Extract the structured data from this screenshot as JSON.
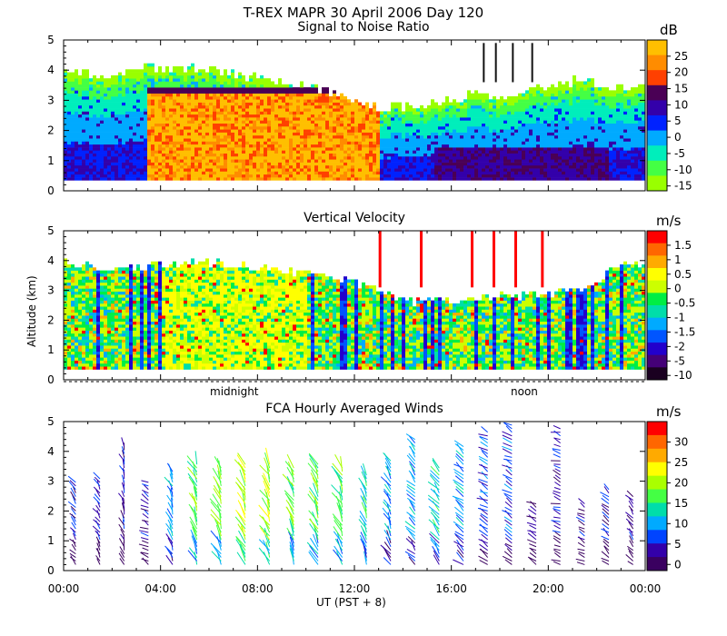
{
  "header": {
    "title": "T-REX  MAPR 30 April 2006 Day 120",
    "subtitle": "Signal to Noise Ratio"
  },
  "panels": {
    "velocity_title": "Vertical Velocity",
    "winds_title": "FCA Hourly Averaged Winds",
    "ylabel": "Altitude (km)",
    "xlabel": "UT  (PST + 8)",
    "midnight_label": "midnight",
    "noon_label": "noon"
  },
  "colorbars": {
    "snr_unit": "dB",
    "vel_unit": "m/s",
    "wind_unit": "m/s",
    "snr_ticks": [
      "25",
      "20",
      "15",
      "10",
      "5",
      "0",
      "-5",
      "-10",
      "-15"
    ],
    "vel_ticks": [
      "1.5",
      "1",
      "0.5",
      "0",
      "-0.5",
      "-1",
      "-1.5",
      "-2",
      "-5",
      "-10"
    ],
    "wind_ticks": [
      "30",
      "25",
      "20",
      "15",
      "10",
      "5",
      "0"
    ],
    "snr_colors": [
      "#ffbf00",
      "#ff8c00",
      "#ff4000",
      "#4a0055",
      "#3300aa",
      "#0022ff",
      "#00aaff",
      "#00eebb",
      "#44ff44",
      "#99ff00"
    ],
    "vel_colors": [
      "#ff0000",
      "#ff6600",
      "#ffaa00",
      "#ffff00",
      "#ccff00",
      "#00ee44",
      "#00ddaa",
      "#00aaff",
      "#0055ff",
      "#2200cc",
      "#440077",
      "#1a0020"
    ],
    "wind_colors": [
      "#ff0000",
      "#ff6600",
      "#ffaa00",
      "#ffff00",
      "#aaff00",
      "#44ff44",
      "#00ddaa",
      "#00aaff",
      "#0044ff",
      "#3300aa",
      "#3a0060"
    ]
  },
  "chart_data": [
    {
      "type": "heatmap",
      "name": "snr",
      "title": "Signal to Noise Ratio",
      "xlabel": "UT  (PST + 8)",
      "ylabel": "Altitude (km)",
      "xlim": [
        0,
        24
      ],
      "ylim": [
        0,
        5
      ],
      "x_ticks": [
        "00:00",
        "04:00",
        "08:00",
        "12:00",
        "16:00",
        "20:00",
        "00:00"
      ],
      "y_ticks": [
        "0",
        "1",
        "2",
        "3",
        "4",
        "5"
      ],
      "colorbar": {
        "label": "dB",
        "range": [
          -15,
          25
        ]
      },
      "echo_top_km": [
        3.9,
        3.8,
        3.8,
        4.0,
        4.0,
        4.0,
        4.0,
        3.8,
        3.7,
        3.6,
        3.4,
        3.2,
        2.9,
        2.7,
        2.8,
        2.8,
        3.0,
        3.1,
        3.1,
        3.2,
        3.5,
        3.6,
        3.5,
        3.4,
        3.5
      ],
      "strong_layer": {
        "start_ut": 3.4,
        "end_ut": 13.0,
        "top_km": 3.4,
        "peak_db": 22
      }
    },
    {
      "type": "heatmap",
      "name": "vertical_velocity",
      "title": "Vertical Velocity",
      "xlabel": "UT  (PST + 8)",
      "ylabel": "Altitude (km)",
      "xlim": [
        0,
        24
      ],
      "ylim": [
        0,
        5
      ],
      "y_ticks": [
        "0",
        "1",
        "2",
        "3",
        "4",
        "5"
      ],
      "colorbar": {
        "label": "m/s",
        "range": [
          -10,
          1.5
        ]
      },
      "echo_top_km": [
        3.9,
        3.8,
        3.7,
        3.7,
        3.8,
        3.9,
        3.9,
        3.8,
        3.7,
        3.6,
        3.5,
        3.4,
        3.2,
        3.0,
        2.6,
        2.6,
        2.6,
        2.7,
        2.8,
        2.8,
        2.8,
        3.0,
        3.3,
        3.8,
        3.9
      ],
      "markers": {
        "midnight_ut": 8,
        "noon_ut": 20
      }
    },
    {
      "type": "scatter",
      "name": "hourly_winds",
      "title": "FCA Hourly Averaged Winds",
      "xlabel": "UT  (PST + 8)",
      "ylabel": "Altitude (km)",
      "xlim": [
        0,
        24
      ],
      "ylim": [
        0,
        5
      ],
      "x_ticks": [
        "00:00",
        "04:00",
        "08:00",
        "12:00",
        "16:00",
        "20:00",
        "00:00"
      ],
      "y_ticks": [
        "0",
        "1",
        "2",
        "3",
        "4",
        "5"
      ],
      "colorbar": {
        "label": "m/s",
        "range": [
          0,
          30
        ]
      },
      "profiles": [
        {
          "hour": 0.5,
          "top": 3.0,
          "dir": 320,
          "speed": 4
        },
        {
          "hour": 1.5,
          "top": 3.1,
          "dir": 330,
          "speed": 3
        },
        {
          "hour": 2.5,
          "top": 4.2,
          "dir": 340,
          "speed": 3
        },
        {
          "hour": 3.5,
          "top": 3.0,
          "dir": 300,
          "speed": 3
        },
        {
          "hour": 4.5,
          "top": 3.4,
          "dir": 335,
          "speed": 8
        },
        {
          "hour": 5.5,
          "top": 3.6,
          "dir": 335,
          "speed": 14
        },
        {
          "hour": 6.5,
          "top": 3.5,
          "dir": 335,
          "speed": 16
        },
        {
          "hour": 7.5,
          "top": 3.6,
          "dir": 335,
          "speed": 17
        },
        {
          "hour": 8.5,
          "top": 3.6,
          "dir": 335,
          "speed": 17
        },
        {
          "hour": 9.5,
          "top": 3.5,
          "dir": 335,
          "speed": 15
        },
        {
          "hour": 10.5,
          "top": 3.6,
          "dir": 335,
          "speed": 16
        },
        {
          "hour": 11.5,
          "top": 3.5,
          "dir": 335,
          "speed": 16
        },
        {
          "hour": 12.5,
          "top": 3.3,
          "dir": 335,
          "speed": 13
        },
        {
          "hour": 13.5,
          "top": 3.7,
          "dir": 330,
          "speed": 10
        },
        {
          "hour": 14.5,
          "top": 4.5,
          "dir": 320,
          "speed": 8
        },
        {
          "hour": 15.5,
          "top": 3.5,
          "dir": 320,
          "speed": 12
        },
        {
          "hour": 16.5,
          "top": 4.2,
          "dir": 310,
          "speed": 9
        },
        {
          "hour": 17.5,
          "top": 4.7,
          "dir": 300,
          "speed": 6
        },
        {
          "hour": 18.5,
          "top": 4.9,
          "dir": 300,
          "speed": 5
        },
        {
          "hour": 19.5,
          "top": 2.3,
          "dir": 300,
          "speed": 4
        },
        {
          "hour": 20.5,
          "top": 4.8,
          "dir": 290,
          "speed": 3
        },
        {
          "hour": 21.5,
          "top": 2.3,
          "dir": 300,
          "speed": 3
        },
        {
          "hour": 22.5,
          "top": 2.8,
          "dir": 310,
          "speed": 3
        },
        {
          "hour": 23.5,
          "top": 2.6,
          "dir": 320,
          "speed": 3
        }
      ]
    }
  ]
}
